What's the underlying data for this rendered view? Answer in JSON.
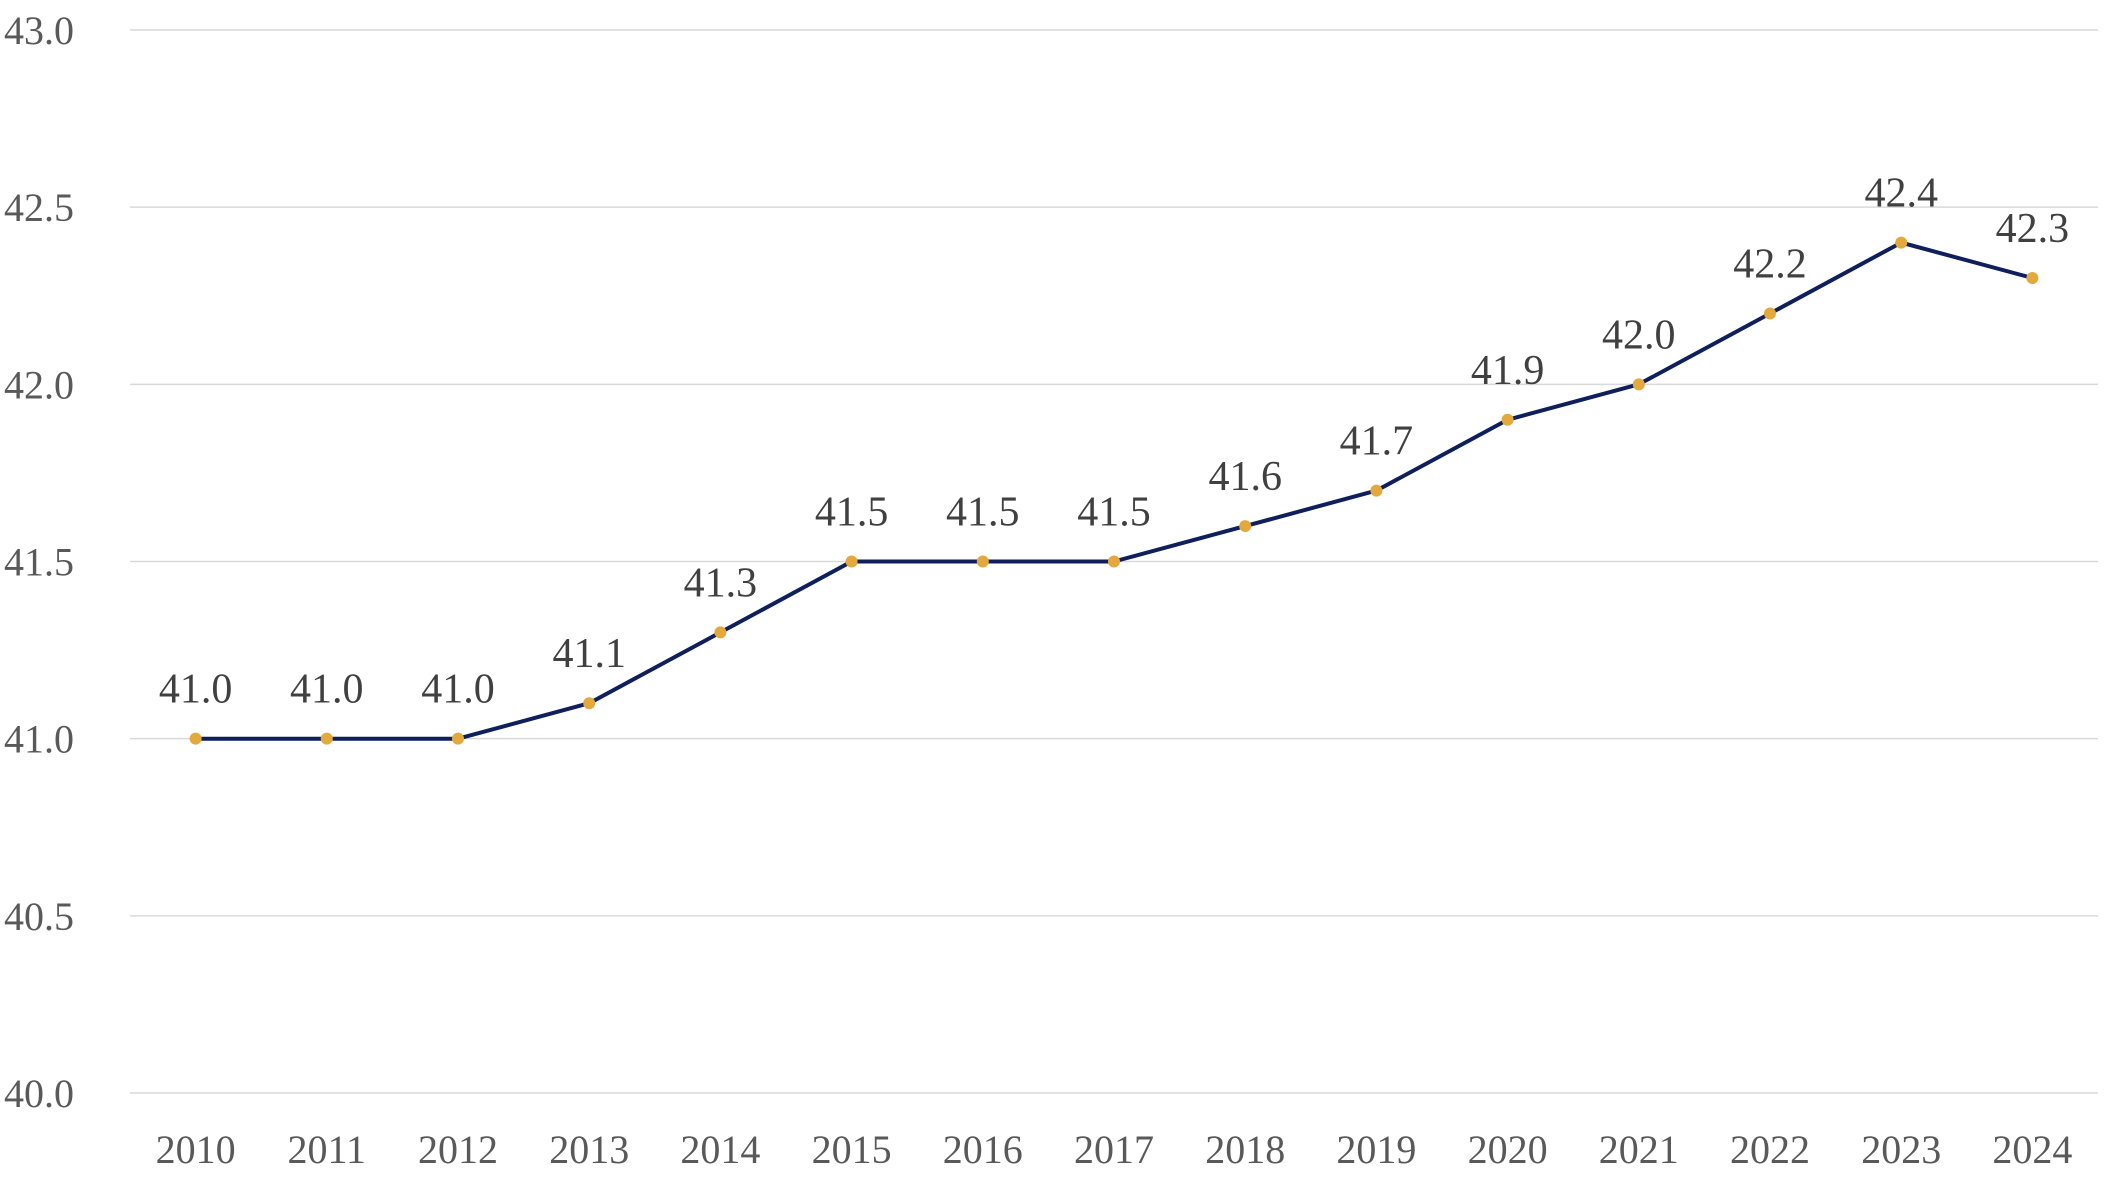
{
  "chart_data": {
    "type": "line",
    "title": "",
    "xlabel": "",
    "ylabel": "",
    "categories": [
      "2010",
      "2011",
      "2012",
      "2013",
      "2014",
      "2015",
      "2016",
      "2017",
      "2018",
      "2019",
      "2020",
      "2021",
      "2022",
      "2023",
      "2024"
    ],
    "series": [
      {
        "values": [
          41.0,
          41.0,
          41.0,
          41.1,
          41.3,
          41.5,
          41.5,
          41.5,
          41.6,
          41.7,
          41.9,
          42.0,
          42.2,
          42.4,
          42.3
        ],
        "labels": [
          "41.0",
          "41.0",
          "41.0",
          "41.1",
          "41.3",
          "41.5",
          "41.5",
          "41.5",
          "41.6",
          "41.7",
          "41.9",
          "42.0",
          "42.2",
          "42.4",
          "42.3"
        ],
        "line_color": "#0f1f5c",
        "marker_color": "#e3a93d"
      }
    ],
    "ylim": [
      40.0,
      43.0
    ],
    "y_ticks": [
      "40.0",
      "40.5",
      "41.0",
      "41.5",
      "42.0",
      "42.5",
      "43.0"
    ],
    "grid": true,
    "legend": "none"
  }
}
